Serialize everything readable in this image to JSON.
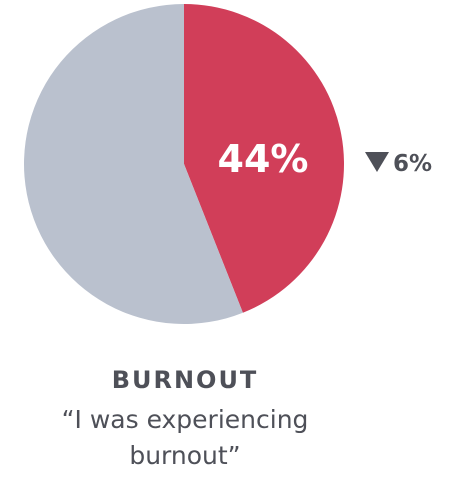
{
  "chart_data": {
    "type": "pie",
    "slices": [
      {
        "label": "44%",
        "value": 44,
        "color": "#d13e59"
      },
      {
        "value": 56,
        "color": "#bac1ce"
      }
    ],
    "center_label": "44%",
    "change": {
      "direction": "down",
      "value": "6%",
      "marker": "down-triangle-icon"
    },
    "title": "BURNOUT",
    "subtitle_lines": [
      "“I was experiencing",
      "burnout”"
    ]
  }
}
